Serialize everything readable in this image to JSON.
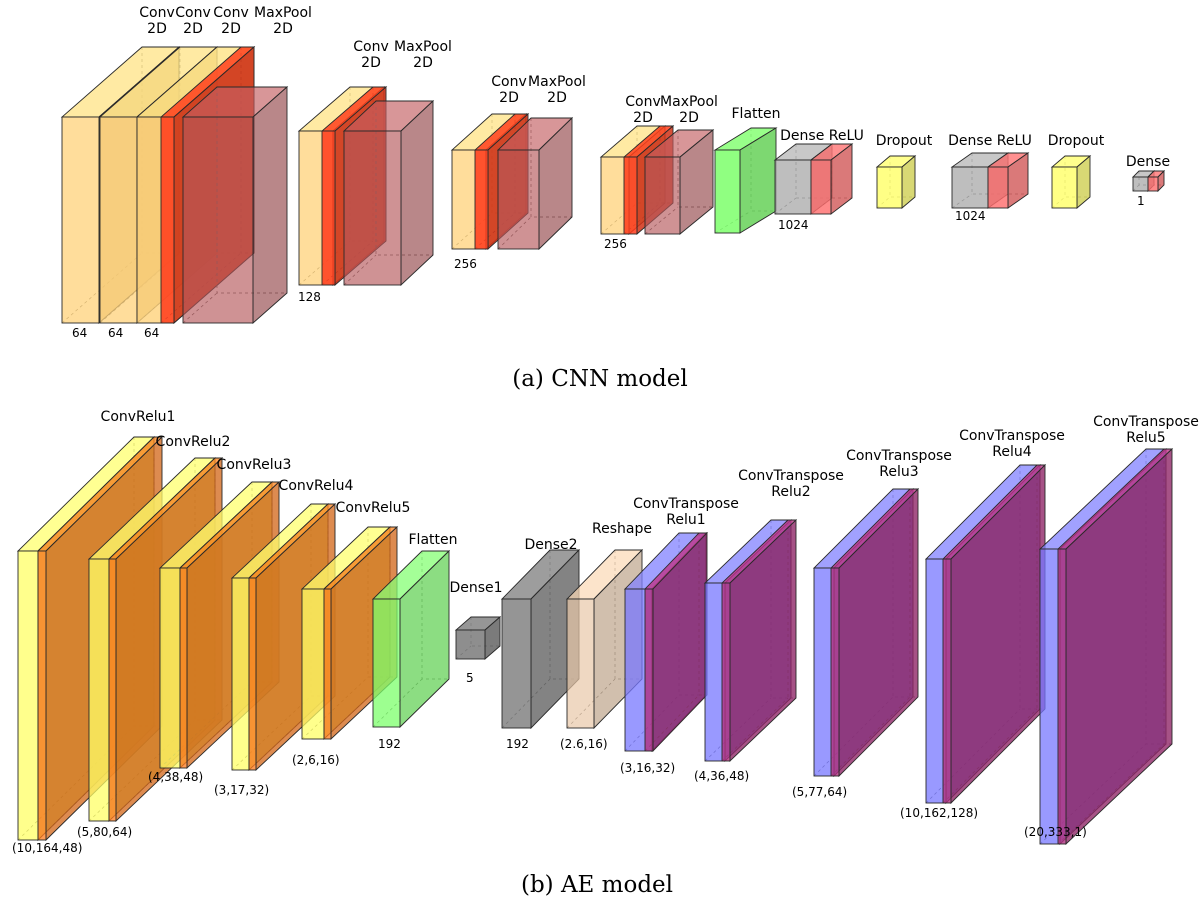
{
  "colors": {
    "conv": "#FFD27A",
    "relu": "#FF3A1A",
    "maxpool": "#B5575A",
    "flatten": "#7CFF6B",
    "dense": "#A8A8A8",
    "dense_relu": "#FF6B6B",
    "dropout": "#FFFF70",
    "ae_conv": "#FFFF66",
    "ae_relu": "#FF7A1A",
    "ae_dense": "#7A7A7A",
    "reshape": "#E8C8A8",
    "ae_tconv": "#7777FF",
    "ae_trelu": "#B0307F"
  },
  "cnn": {
    "caption": "(a) CNN model",
    "labels": {
      "c1": [
        "Conv",
        "2D"
      ],
      "c2": [
        "Conv",
        "2D"
      ],
      "c3": [
        "Conv",
        "2D"
      ],
      "mp1": [
        "MaxPool",
        "2D"
      ],
      "c4": [
        "Conv",
        "2D"
      ],
      "mp2": [
        "MaxPool",
        "2D"
      ],
      "c5": [
        "Conv",
        "2D"
      ],
      "mp3": [
        "MaxPool",
        "2D"
      ],
      "c6": [
        "Conv",
        "2D"
      ],
      "mp4": [
        "MaxPool",
        "2D"
      ],
      "flatten": [
        "Flatten"
      ],
      "dense1": [
        "Dense ReLU"
      ],
      "drop1": [
        "Dropout"
      ],
      "dense2": [
        "Dense ReLU"
      ],
      "drop2": [
        "Dropout"
      ],
      "dense3": [
        "Dense"
      ]
    },
    "dims": {
      "d1": "64",
      "d2": "64",
      "d3": "64",
      "d4": "128",
      "d5": "256",
      "d6": "256",
      "d7": "1024",
      "d8": "1024",
      "d9": "1"
    }
  },
  "ae": {
    "caption": "(b) AE model",
    "labels": {
      "e1": [
        "ConvRelu1"
      ],
      "e2": [
        "ConvRelu2"
      ],
      "e3": [
        "ConvRelu3"
      ],
      "e4": [
        "ConvRelu4"
      ],
      "e5": [
        "ConvRelu5"
      ],
      "flatten": [
        "Flatten"
      ],
      "dense1": [
        "Dense1"
      ],
      "dense2": [
        "Dense2"
      ],
      "reshape": [
        "Reshape"
      ],
      "t1": [
        "ConvTranspose",
        "Relu1"
      ],
      "t2": [
        "ConvTranspose",
        "Relu2"
      ],
      "t3": [
        "ConvTranspose",
        "Relu3"
      ],
      "t4": [
        "ConvTranspose",
        "Relu4"
      ],
      "t5": [
        "ConvTranspose",
        "Relu5"
      ]
    },
    "dims": {
      "e1": "(10,164,48)",
      "e2": "(5,80,64)",
      "e3": "(4,38,48)",
      "e4": "(3,17,32)",
      "e5": "(2,6,16)",
      "flatten": "192",
      "dense1": "5",
      "dense2": "192",
      "reshape": "(2.6,16)",
      "t1": "(3,16,32)",
      "t2": "(4,36,48)",
      "t3": "(5,77,64)",
      "t4": "(10,162,128)",
      "t5": "(20,333,1)"
    }
  }
}
